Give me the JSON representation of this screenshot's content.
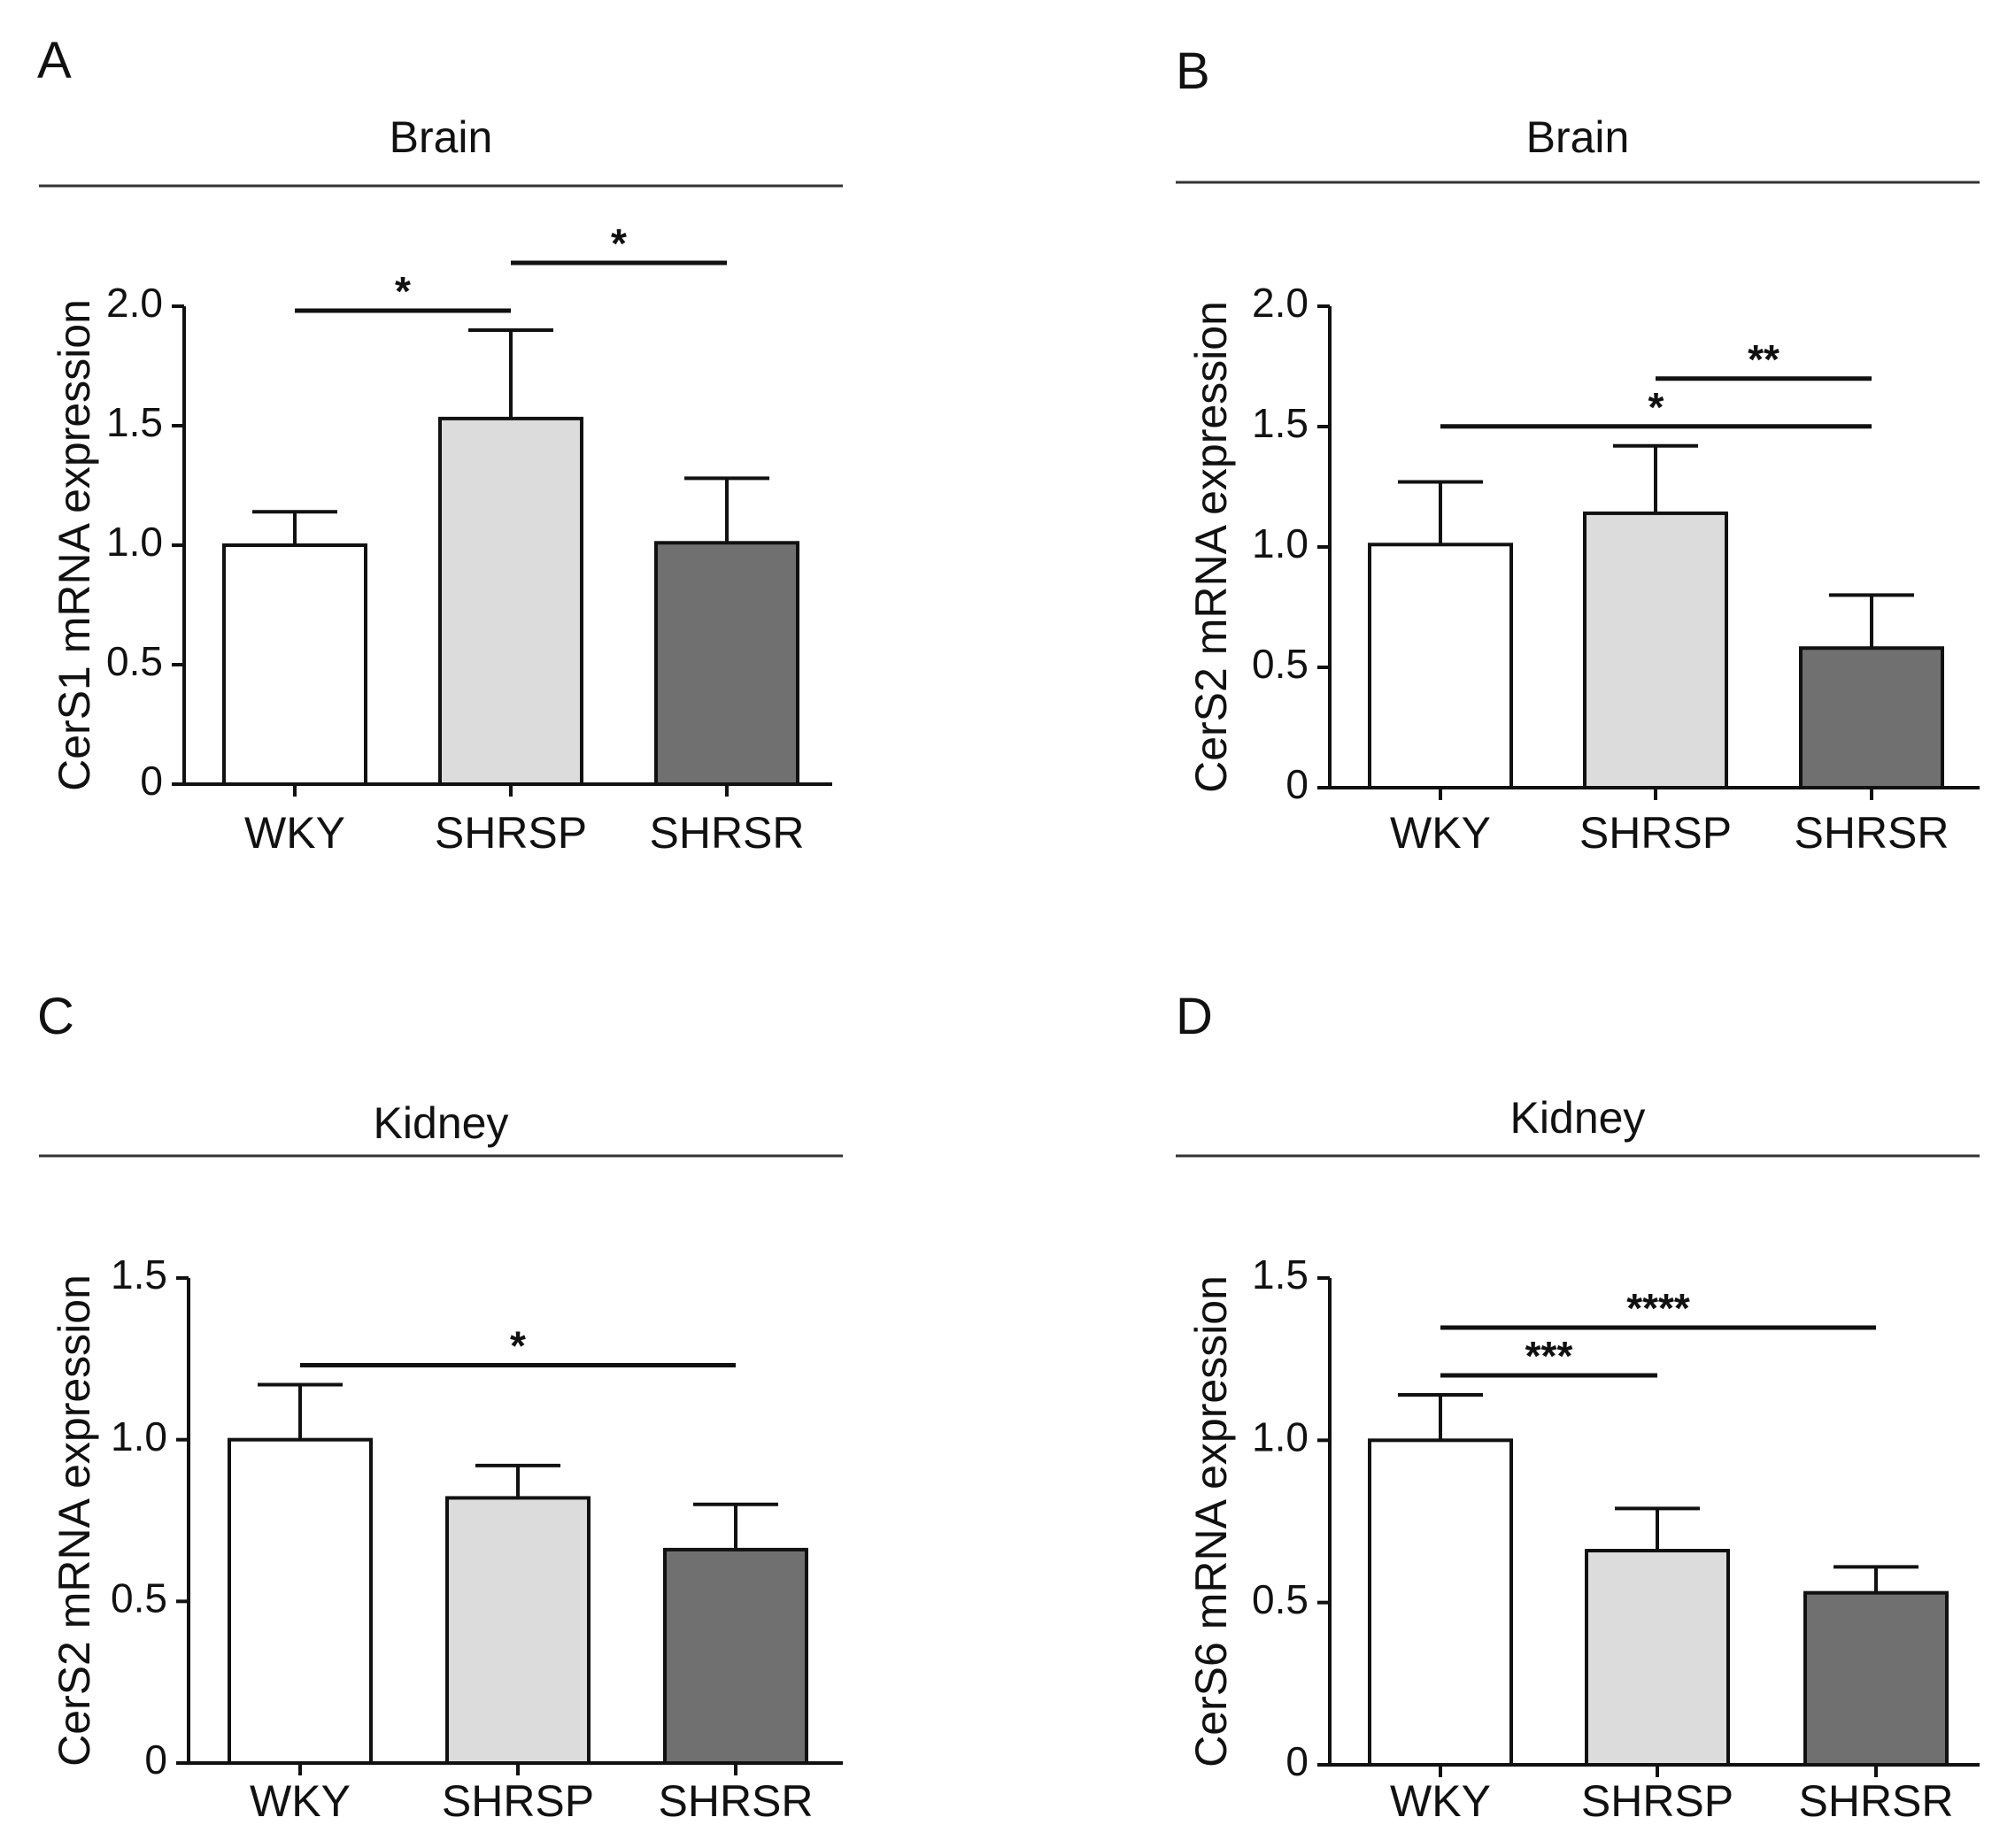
{
  "chart_data": [
    {
      "type": "bar",
      "panel": "A",
      "title": "Brain",
      "ylabel": "CerS1 mRNA expression",
      "ylim": [
        0,
        2.0
      ],
      "yticks": [
        "0",
        "0.5",
        "1.0",
        "1.5",
        "2.0"
      ],
      "categories": [
        "WKY",
        "SHRSP",
        "SHRSR"
      ],
      "values": [
        1.0,
        1.53,
        1.01
      ],
      "errors": [
        0.14,
        0.37,
        0.27
      ],
      "colors": [
        "#ffffff",
        "#dcdcdc",
        "#707070"
      ],
      "significance": [
        {
          "from": 0,
          "to": 1,
          "label": "*"
        },
        {
          "from": 1,
          "to": 2,
          "label": "*"
        }
      ]
    },
    {
      "type": "bar",
      "panel": "B",
      "title": "Brain",
      "ylabel": "CerS2 mRNA expression",
      "ylim": [
        0,
        2.0
      ],
      "yticks": [
        "0",
        "0.5",
        "1.0",
        "1.5",
        "2.0"
      ],
      "categories": [
        "WKY",
        "SHRSP",
        "SHRSR"
      ],
      "values": [
        1.01,
        1.14,
        0.58
      ],
      "errors": [
        0.26,
        0.28,
        0.22
      ],
      "colors": [
        "#ffffff",
        "#dcdcdc",
        "#707070"
      ],
      "significance": [
        {
          "from": 0,
          "to": 2,
          "label": "*"
        },
        {
          "from": 1,
          "to": 2,
          "label": "**"
        }
      ]
    },
    {
      "type": "bar",
      "panel": "C",
      "title": "Kidney",
      "ylabel": "CerS2 mRNA expression",
      "ylim": [
        0,
        1.5
      ],
      "yticks": [
        "0",
        "0.5",
        "1.0",
        "1.5"
      ],
      "categories": [
        "WKY",
        "SHRSP",
        "SHRSR"
      ],
      "values": [
        1.0,
        0.82,
        0.66
      ],
      "errors": [
        0.17,
        0.1,
        0.14
      ],
      "colors": [
        "#ffffff",
        "#dcdcdc",
        "#707070"
      ],
      "significance": [
        {
          "from": 0,
          "to": 2,
          "label": "*"
        }
      ]
    },
    {
      "type": "bar",
      "panel": "D",
      "title": "Kidney",
      "ylabel": "CerS6 mRNA expression",
      "ylim": [
        0,
        1.5
      ],
      "yticks": [
        "0",
        "0.5",
        "1.0",
        "1.5"
      ],
      "categories": [
        "WKY",
        "SHRSP",
        "SHRSR"
      ],
      "values": [
        1.0,
        0.66,
        0.53
      ],
      "errors": [
        0.14,
        0.13,
        0.08
      ],
      "colors": [
        "#ffffff",
        "#dcdcdc",
        "#707070"
      ],
      "significance": [
        {
          "from": 0,
          "to": 1,
          "label": "***"
        },
        {
          "from": 0,
          "to": 2,
          "label": "****"
        }
      ]
    }
  ]
}
